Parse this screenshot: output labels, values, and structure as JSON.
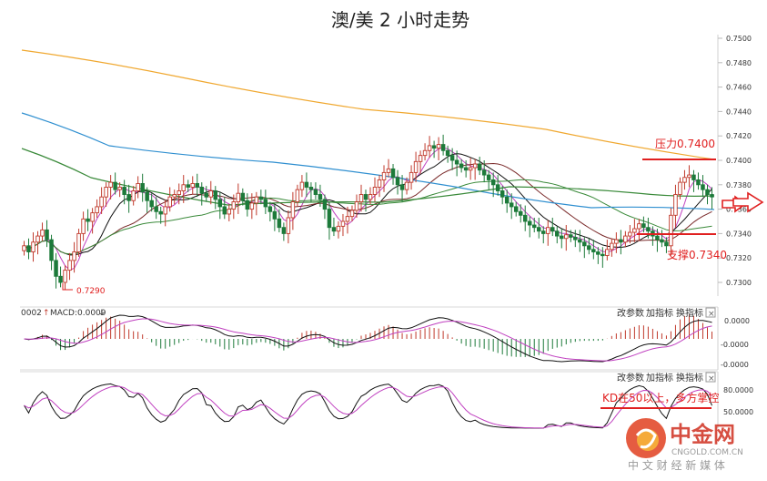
{
  "title": "澳/美 2 小时走势",
  "price_axis": {
    "ticks": [
      "0.7500",
      "0.7480",
      "0.7460",
      "0.7440",
      "0.7420",
      "0.7400",
      "0.7380",
      "0.7360",
      "0.7340",
      "0.7320",
      "0.7300"
    ]
  },
  "annotations": {
    "resistance": "压力0.7400",
    "support": "支撑0.7340",
    "low": "0.7290",
    "kd_note": "KD在50以上，多方掌控"
  },
  "macd": {
    "header_prefix": "0002",
    "header": "MACD:0.0009",
    "ticks": [
      "0.0000",
      "-0.0000",
      "-0.0000"
    ]
  },
  "kd": {
    "ticks": [
      "80.0000",
      "50.0000"
    ]
  },
  "panel_buttons": {
    "params": "改参数",
    "add": "加指标",
    "switch": "换指标",
    "close": "×"
  },
  "logo": {
    "name": "中金网",
    "domain": "CNGOLD.COM.CN",
    "slogan": "中 文 财 经 新 媒 体"
  },
  "colors": {
    "up": "#c0392b",
    "down": "#1d7a3a",
    "ma_orange": "#f0a830",
    "ma_blue": "#2f8fd0",
    "ma_green": "#3a8a3a",
    "ma_maroon": "#7a2a2a",
    "ma_purple": "#c040c0",
    "annot": "#e02020"
  },
  "chart_data": {
    "type": "candlestick",
    "title": "澳/美 2 小时走势",
    "ylim": [
      0.729,
      0.7505
    ],
    "y_ticks": [
      0.75,
      0.748,
      0.746,
      0.744,
      0.742,
      0.74,
      0.738,
      0.736,
      0.734,
      0.732,
      0.73
    ],
    "close": [
      0.733,
      0.7325,
      0.7333,
      0.7338,
      0.7343,
      0.7335,
      0.7318,
      0.7305,
      0.73,
      0.731,
      0.7318,
      0.7325,
      0.734,
      0.7352,
      0.735,
      0.7357,
      0.7362,
      0.737,
      0.7378,
      0.7382,
      0.7376,
      0.7378,
      0.7372,
      0.7367,
      0.7375,
      0.7381,
      0.7374,
      0.7367,
      0.7362,
      0.7358,
      0.7356,
      0.7362,
      0.737,
      0.7372,
      0.7375,
      0.738,
      0.7378,
      0.7381,
      0.7378,
      0.7373,
      0.737,
      0.7375,
      0.7368,
      0.7362,
      0.7356,
      0.736,
      0.7366,
      0.7373,
      0.7367,
      0.736,
      0.7365,
      0.737,
      0.7368,
      0.7362,
      0.7358,
      0.7352,
      0.7345,
      0.734,
      0.7353,
      0.7366,
      0.7376,
      0.7382,
      0.7378,
      0.7376,
      0.7372,
      0.7368,
      0.736,
      0.7345,
      0.7342,
      0.7346,
      0.735,
      0.7354,
      0.7359,
      0.7366,
      0.7372,
      0.7368,
      0.7372,
      0.7378,
      0.7384,
      0.739,
      0.7393,
      0.7386,
      0.738,
      0.7376,
      0.7382,
      0.739,
      0.7399,
      0.7404,
      0.7408,
      0.7412,
      0.741,
      0.7413,
      0.7408,
      0.7404,
      0.74,
      0.7397,
      0.7394,
      0.7392,
      0.7394,
      0.7397,
      0.7392,
      0.7388,
      0.7384,
      0.738,
      0.7375,
      0.737,
      0.7365,
      0.7362,
      0.7358,
      0.7355,
      0.735,
      0.7347,
      0.7345,
      0.7342,
      0.734,
      0.7345,
      0.7342,
      0.7338,
      0.7336,
      0.7339,
      0.7337,
      0.7335,
      0.7333,
      0.733,
      0.7327,
      0.7325,
      0.7323,
      0.7322,
      0.7327,
      0.7332,
      0.7335,
      0.7333,
      0.7338,
      0.7341,
      0.7344,
      0.7348,
      0.7345,
      0.7342,
      0.7338,
      0.7335,
      0.7333,
      0.733,
      0.7355,
      0.7372,
      0.7382,
      0.7386,
      0.7388,
      0.7384,
      0.738,
      0.7376,
      0.7372,
      0.737
    ],
    "levels": {
      "resistance": 0.74,
      "support": 0.734,
      "low": 0.729
    },
    "macd": {
      "value": 0.0009
    },
    "kd": {
      "ticks": [
        80,
        50
      ]
    }
  }
}
